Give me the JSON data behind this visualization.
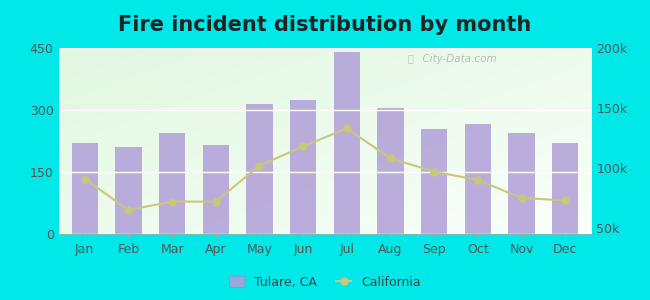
{
  "title": "Fire incident distribution by month",
  "months": [
    "Jan",
    "Feb",
    "Mar",
    "Apr",
    "May",
    "Jun",
    "Jul",
    "Aug",
    "Sep",
    "Oct",
    "Nov",
    "Dec"
  ],
  "tulare_values": [
    220,
    210,
    245,
    215,
    315,
    325,
    440,
    305,
    255,
    265,
    245,
    220
  ],
  "california_values": [
    91000,
    65000,
    72000,
    72000,
    102000,
    118000,
    133000,
    108000,
    97000,
    90000,
    75000,
    73000
  ],
  "bar_color": "#b09fd8",
  "bar_alpha": 0.85,
  "line_color": "#c8c87a",
  "line_marker": "o",
  "line_marker_size": 5,
  "outer_bg": "#00e8e8",
  "plot_bg_topleft": "#e8f5e8",
  "plot_bg_bottomright": "#f5fff5",
  "ylim_left": [
    0,
    450
  ],
  "ylim_right": [
    45000,
    200000
  ],
  "yticks_left": [
    0,
    150,
    300,
    450
  ],
  "yticks_right": [
    50000,
    100000,
    150000,
    200000
  ],
  "ytick_labels_right": [
    "50k",
    "100k",
    "150k",
    "200k"
  ],
  "title_fontsize": 15,
  "tick_fontsize": 9,
  "legend_fontsize": 9,
  "watermark": "City-Data.com"
}
